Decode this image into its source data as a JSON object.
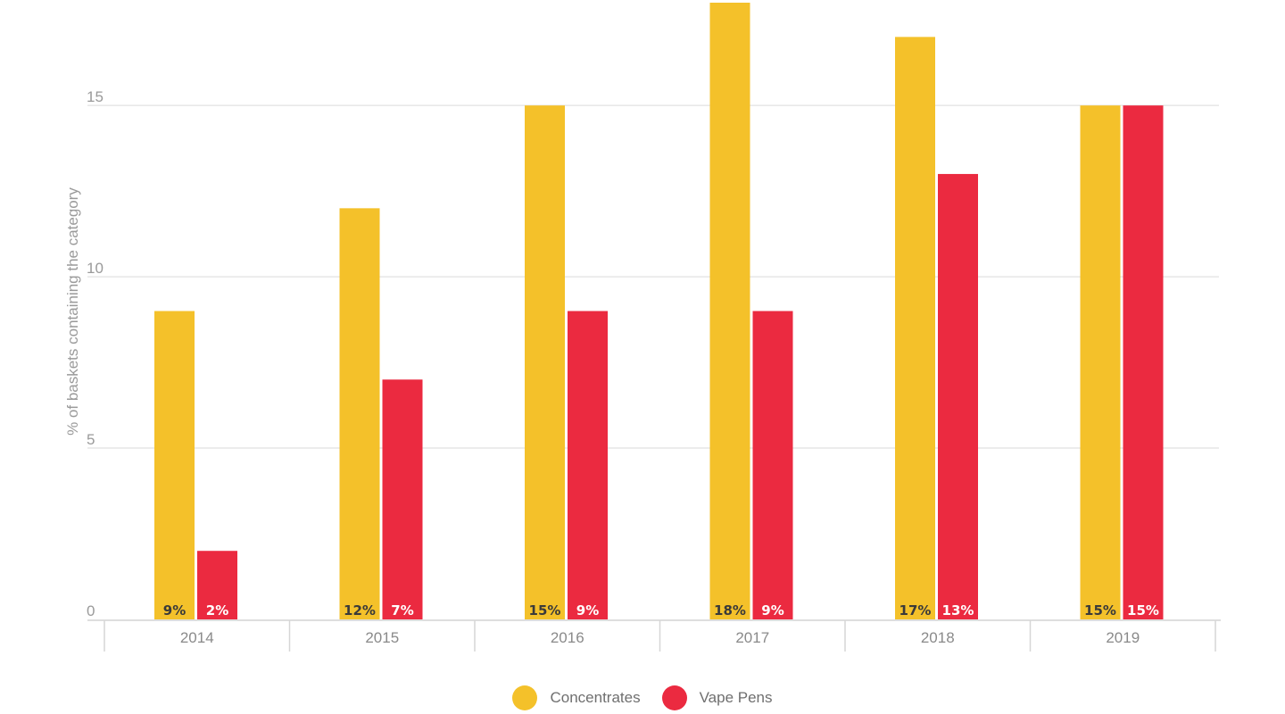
{
  "chart_data": {
    "type": "bar",
    "title": "",
    "xlabel": "",
    "ylabel": "% of baskets containing the category",
    "categories": [
      "2014",
      "2015",
      "2016",
      "2017",
      "2018",
      "2019"
    ],
    "series": [
      {
        "name": "Concentrates",
        "color": "#f4c12a",
        "values": [
          9,
          12,
          15,
          18,
          17,
          15
        ],
        "labels": [
          "9%",
          "12%",
          "15%",
          "18%",
          "17%",
          "15%"
        ],
        "label_color": "#3a3a3a"
      },
      {
        "name": "Vape Pens",
        "color": "#eb2a40",
        "values": [
          2,
          7,
          9,
          9,
          13,
          15
        ],
        "labels": [
          "2%",
          "7%",
          "9%",
          "9%",
          "13%",
          "15%"
        ],
        "label_color": "#ffffff"
      }
    ],
    "yticks": [
      "0",
      "5",
      "10",
      "15"
    ],
    "ylim": [
      0,
      18
    ],
    "grid": true,
    "legend": "bottom-center"
  }
}
